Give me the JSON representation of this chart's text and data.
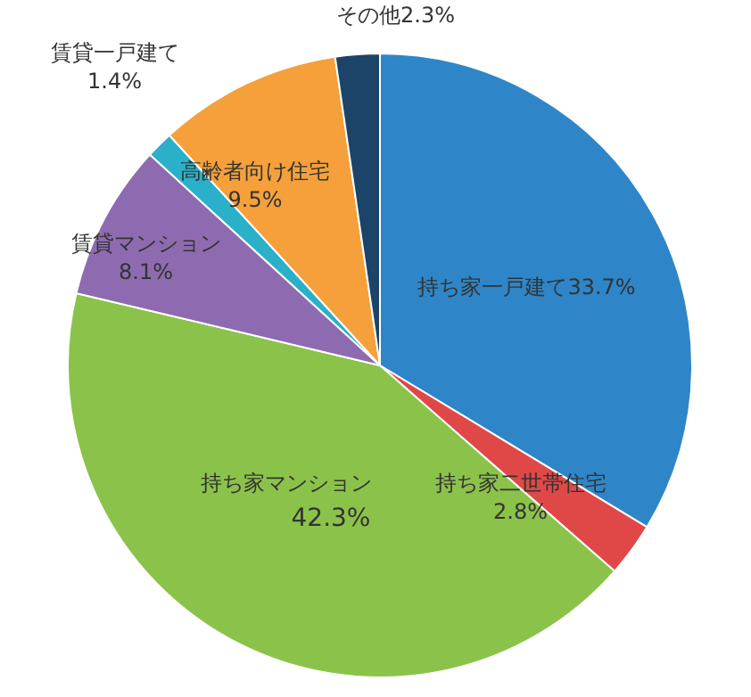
{
  "chart_data": {
    "type": "pie",
    "categories": [
      "持ち家一戸建て",
      "持ち家二世帯住宅",
      "持ち家マンション",
      "賃貸マンション",
      "賃貸一戸建て",
      "高齢者向け住宅",
      "その他"
    ],
    "values": [
      33.7,
      2.8,
      42.3,
      8.1,
      1.4,
      9.5,
      2.3
    ],
    "value_labels": [
      "33.7%",
      "2.8%",
      "42.3%",
      "8.1%",
      "1.4%",
      "9.5%",
      "2.3%"
    ],
    "colors": [
      "#2e86c8",
      "#e04848",
      "#8bc34a",
      "#8e6bb0",
      "#2ab0c8",
      "#f5a03a",
      "#1b4468"
    ]
  }
}
